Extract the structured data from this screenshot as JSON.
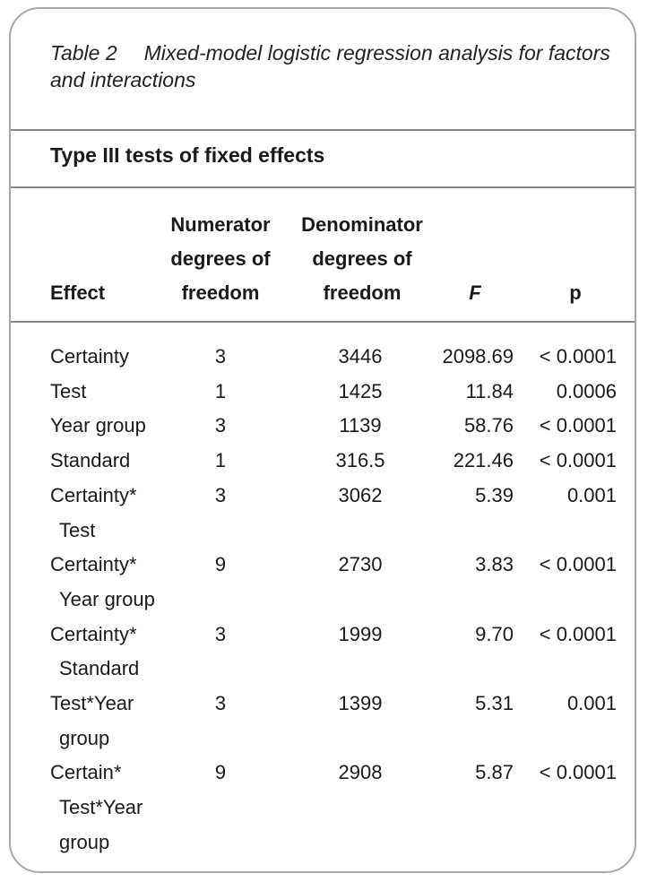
{
  "caption": {
    "label": "Table 2",
    "text": "Mixed-model logistic regression analysis for factors and interactions"
  },
  "section_title": "Type III tests of fixed effects",
  "headers": {
    "effect": "Effect",
    "numerator": [
      "Numerator",
      "degrees of",
      "freedom"
    ],
    "denominator": [
      "Denominator",
      "degrees of",
      "freedom"
    ],
    "f": "F",
    "p": "p"
  },
  "rows": [
    {
      "effect": [
        "Certainty"
      ],
      "num": "3",
      "den": "3446",
      "f": "2098.69",
      "p": "< 0.0001"
    },
    {
      "effect": [
        "Test"
      ],
      "num": "1",
      "den": "1425",
      "f": "11.84",
      "p": "0.0006"
    },
    {
      "effect": [
        "Year group"
      ],
      "num": "3",
      "den": "1139",
      "f": "58.76",
      "p": "< 0.0001"
    },
    {
      "effect": [
        "Standard"
      ],
      "num": "1",
      "den": "316.5",
      "f": "221.46",
      "p": "< 0.0001"
    },
    {
      "effect": [
        "Certainty*",
        "Test"
      ],
      "num": "3",
      "den": "3062",
      "f": "5.39",
      "p": "0.001"
    },
    {
      "effect": [
        "Certainty*",
        "Year group"
      ],
      "num": "9",
      "den": "2730",
      "f": "3.83",
      "p": "< 0.0001"
    },
    {
      "effect": [
        "Certainty*",
        "Standard"
      ],
      "num": "3",
      "den": "1999",
      "f": "9.70",
      "p": "< 0.0001"
    },
    {
      "effect": [
        "Test*Year",
        "group"
      ],
      "num": "3",
      "den": "1399",
      "f": "5.31",
      "p": "0.001"
    },
    {
      "effect": [
        "Certain*",
        "Test*Year",
        "group"
      ],
      "num": "9",
      "den": "2908",
      "f": "5.87",
      "p": "< 0.0001"
    }
  ]
}
